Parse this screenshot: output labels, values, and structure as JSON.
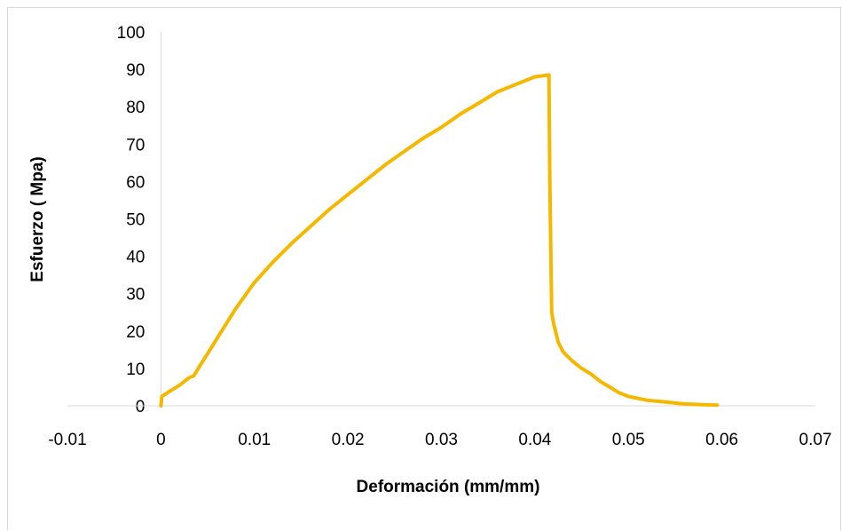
{
  "chart_data": {
    "type": "line",
    "title": "",
    "xlabel": "Deformación (mm/mm)",
    "ylabel": "Esfuerzo ( Mpa)",
    "xlim": [
      -0.01,
      0.07
    ],
    "ylim": [
      0,
      100
    ],
    "x_ticks": [
      "-0.01",
      "0",
      "0.01",
      "0.02",
      "0.03",
      "0.04",
      "0.05",
      "0.06",
      "0.07"
    ],
    "y_ticks": [
      "0",
      "10",
      "20",
      "30",
      "40",
      "50",
      "60",
      "70",
      "80",
      "90",
      "100"
    ],
    "grid": false,
    "legend": "none",
    "series": [
      {
        "color": "#f5b800",
        "x": [
          0,
          0.0001,
          0.001,
          0.002,
          0.003,
          0.0035,
          0.004,
          0.005,
          0.006,
          0.007,
          0.008,
          0.009,
          0.01,
          0.012,
          0.014,
          0.016,
          0.018,
          0.02,
          0.022,
          0.024,
          0.026,
          0.028,
          0.03,
          0.032,
          0.034,
          0.036,
          0.038,
          0.04,
          0.0415,
          0.0416,
          0.0418,
          0.042,
          0.0425,
          0.043,
          0.044,
          0.045,
          0.046,
          0.047,
          0.048,
          0.049,
          0.05,
          0.052,
          0.054,
          0.056,
          0.058,
          0.0595
        ],
        "y": [
          0,
          2.5,
          4,
          5.5,
          7.5,
          8,
          10,
          14,
          18,
          22,
          26,
          29.5,
          33,
          38.5,
          43.5,
          48,
          52.5,
          56.5,
          60.5,
          64.5,
          68,
          71.5,
          74.5,
          78,
          81,
          84,
          86,
          88,
          88.5,
          60,
          25,
          22,
          17,
          14.5,
          12,
          10,
          8.5,
          6.5,
          5,
          3.5,
          2.5,
          1.5,
          1,
          0.5,
          0.3,
          0.2
        ]
      }
    ]
  }
}
